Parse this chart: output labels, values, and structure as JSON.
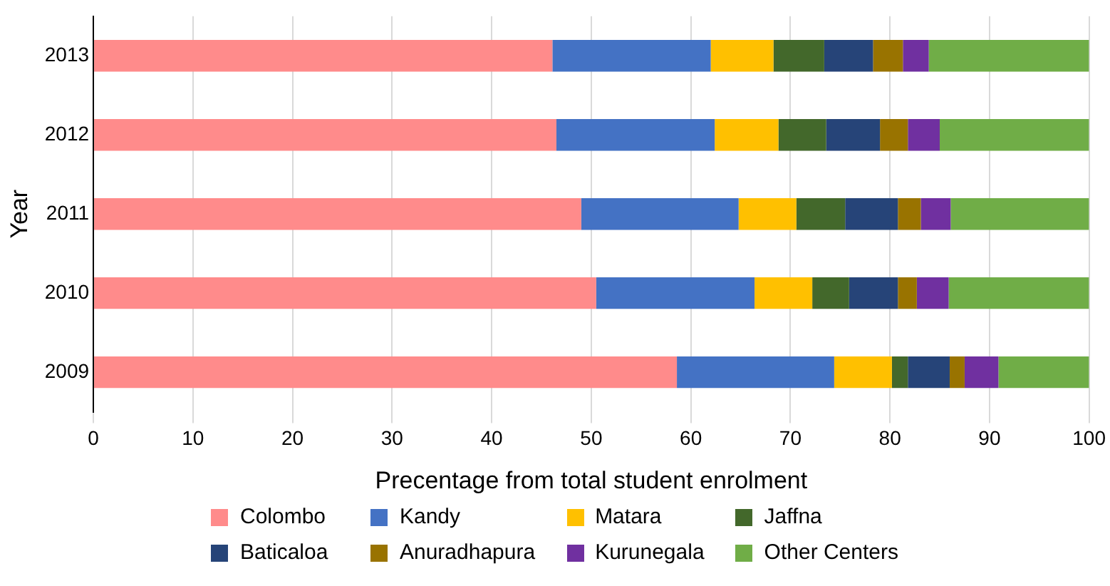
{
  "chart_data": {
    "type": "bar",
    "orientation": "horizontal",
    "stacked": true,
    "xlabel": "Precentage from total student enrolment",
    "ylabel": "Year",
    "categories": [
      "2013",
      "2012",
      "2011",
      "2010",
      "2009"
    ],
    "series": [
      {
        "name": "Colombo",
        "color": "#ff8b8b",
        "values": [
          46.1,
          46.5,
          49.0,
          50.5,
          58.6
        ]
      },
      {
        "name": "Kandy",
        "color": "#4472c4",
        "values": [
          15.9,
          15.9,
          15.8,
          15.9,
          15.8
        ]
      },
      {
        "name": "Matara",
        "color": "#ffc000",
        "values": [
          6.3,
          6.4,
          5.8,
          5.8,
          5.8
        ]
      },
      {
        "name": "Jaffna",
        "color": "#43682b",
        "values": [
          5.1,
          4.8,
          4.9,
          3.7,
          1.6
        ]
      },
      {
        "name": "Baticaloa",
        "color": "#264478",
        "values": [
          4.9,
          5.4,
          5.3,
          4.9,
          4.2
        ]
      },
      {
        "name": "Anuradhapura",
        "color": "#997300",
        "values": [
          3.0,
          2.8,
          2.3,
          1.9,
          1.5
        ]
      },
      {
        "name": "Kurunegala",
        "color": "#7030a0",
        "values": [
          2.6,
          3.2,
          3.0,
          3.2,
          3.4
        ]
      },
      {
        "name": "Other Centers",
        "color": "#70ad47",
        "values": [
          16.1,
          15.0,
          13.9,
          14.1,
          9.1
        ]
      }
    ],
    "xlim": [
      0,
      100
    ],
    "xticks": [
      0,
      10,
      20,
      30,
      40,
      50,
      60,
      70,
      80,
      90,
      100
    ],
    "grid": "x",
    "legend": "bottom"
  }
}
